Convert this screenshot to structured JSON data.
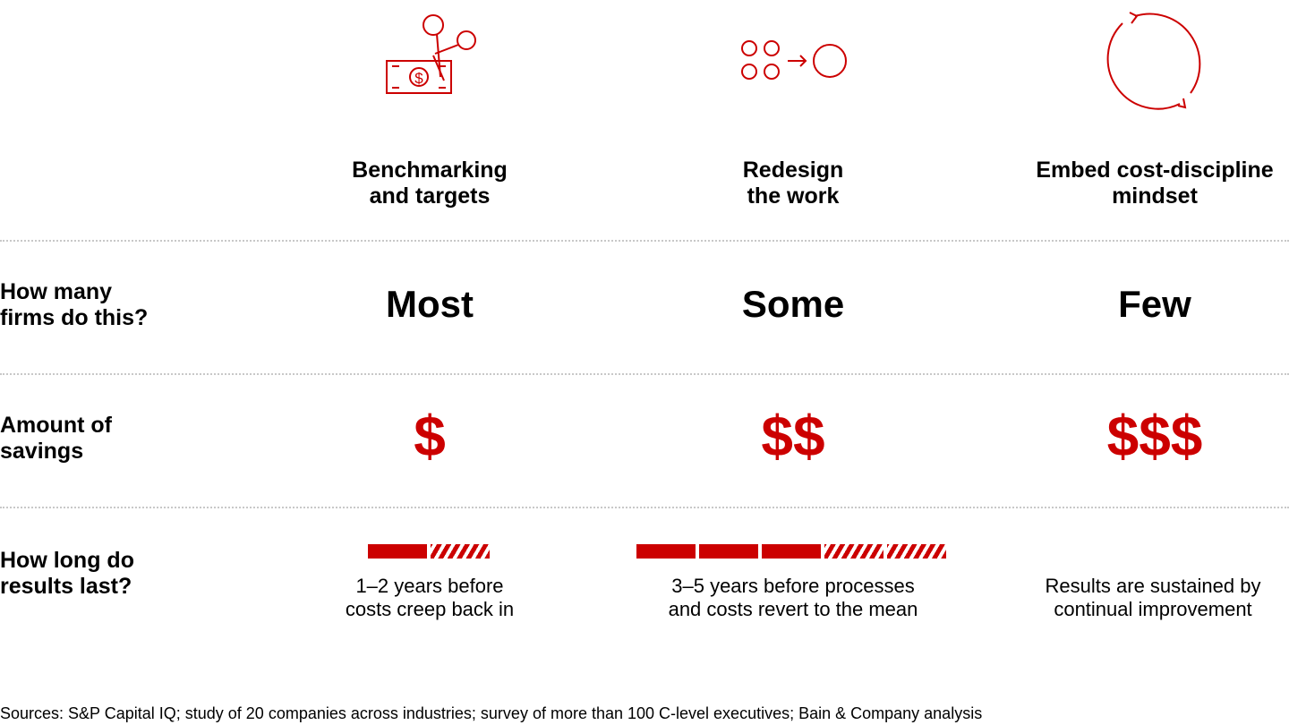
{
  "colors": {
    "accent": "#cc0000",
    "divider": "#c8c8c8"
  },
  "columns": [
    {
      "icon": "scissors-cutting-money-icon",
      "title": "Benchmarking\nand targets",
      "count": "Most",
      "savings": "$",
      "duration_text": "1–2 years before\ncosts creep back in",
      "bar_solid_segments": 1,
      "bar_hatched_segments": 1
    },
    {
      "icon": "circles-merge-icon",
      "title": "Redesign\nthe work",
      "count": "Some",
      "savings": "$$",
      "duration_text": "3–5 years before processes\nand costs revert to the mean",
      "bar_solid_segments": 3,
      "bar_hatched_segments": 2
    },
    {
      "icon": "cycle-arrows-icon",
      "title": "Embed cost-discipline\nmindset",
      "count": "Few",
      "savings": "$$$",
      "duration_text": "Results are sustained by\ncontinual improvement",
      "bar_solid_segments": 0,
      "bar_hatched_segments": 0
    }
  ],
  "row_labels": {
    "firms": "How many\nfirms do this?",
    "savings": "Amount of\nsavings",
    "duration": "How long do\nresults last?"
  },
  "source": "Sources: S&P Capital IQ; study of 20 companies across industries; survey of more than 100 C-level executives; Bain & Company analysis"
}
